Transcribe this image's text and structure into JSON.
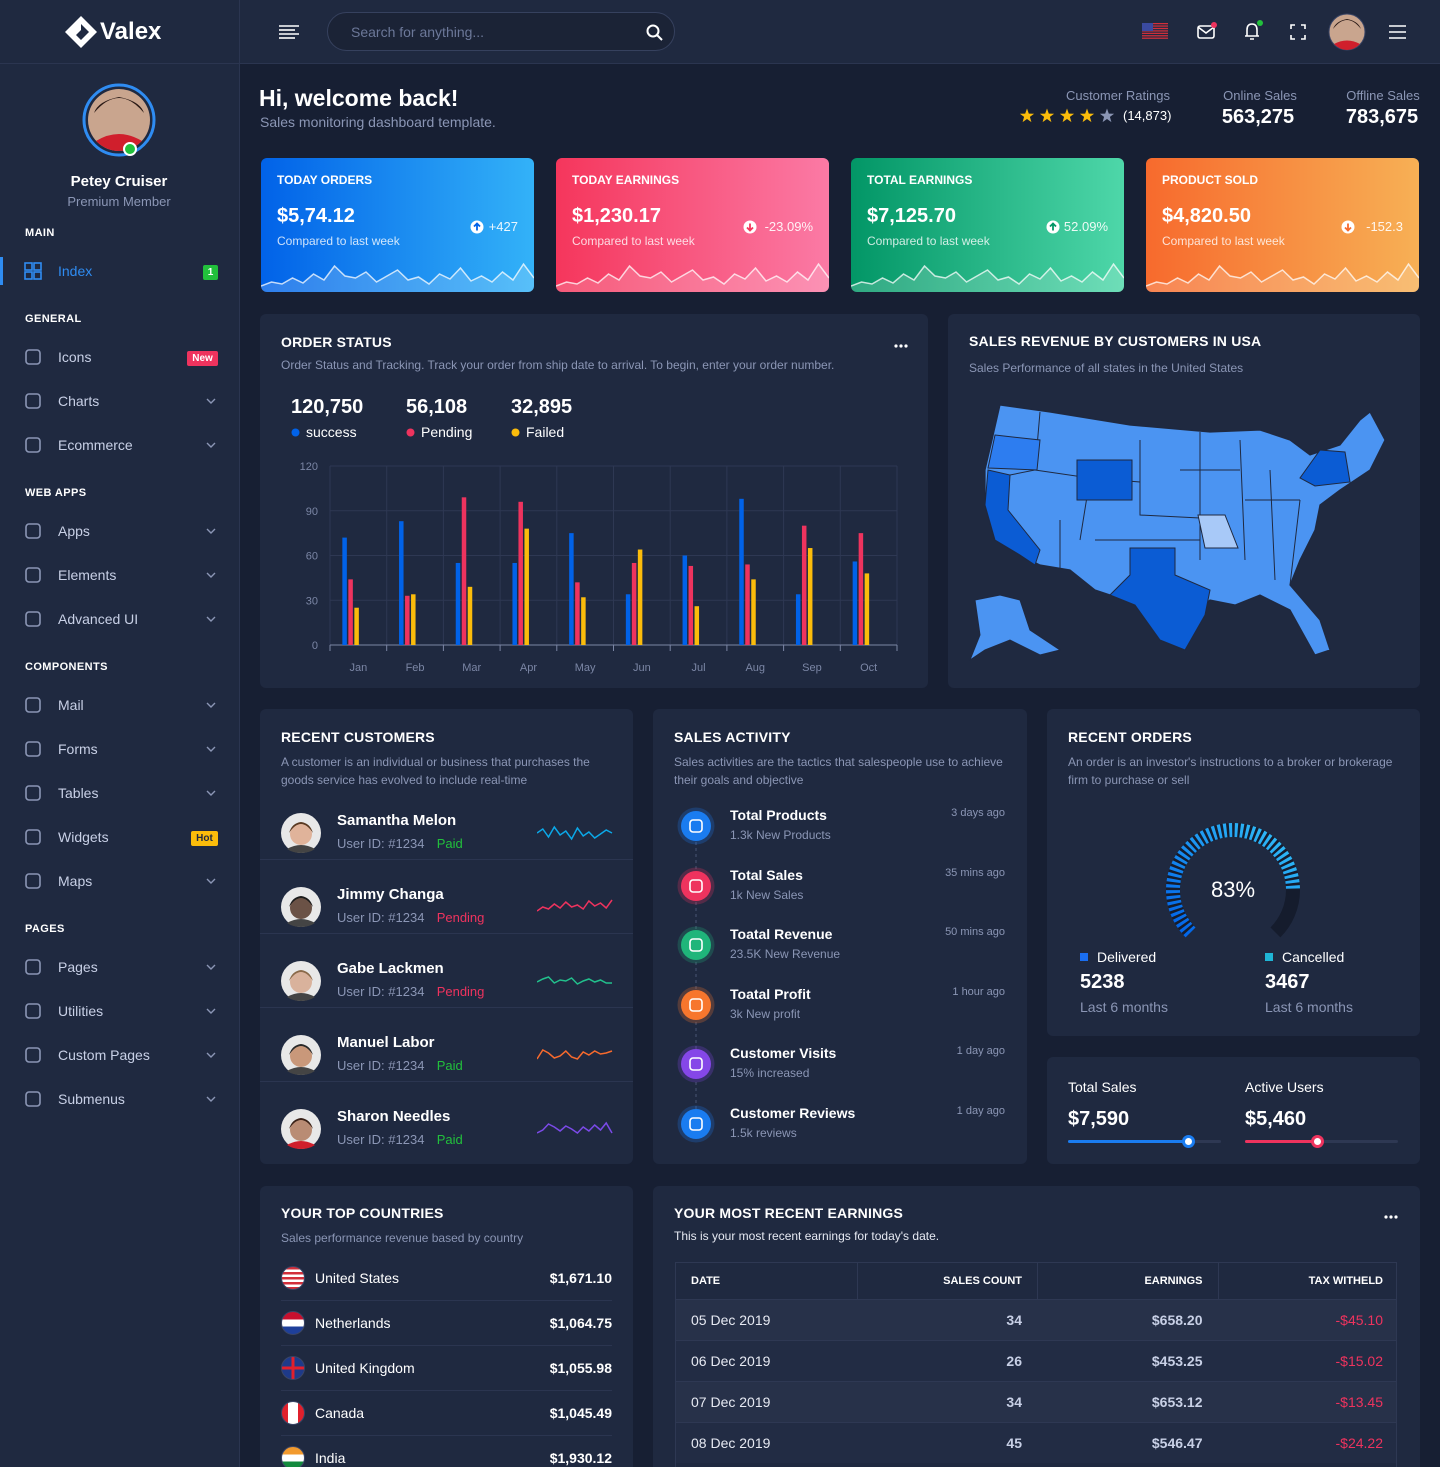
{
  "sidebar": {
    "brand": "Valex",
    "user_name": "Petey Cruiser",
    "user_role": "Premium Member",
    "sections": [
      {
        "title": "MAIN",
        "items": [
          {
            "label": "Index",
            "badge": "1"
          }
        ]
      },
      {
        "title": "GENERAL",
        "items": [
          {
            "label": "Icons",
            "badge": "New"
          },
          {
            "label": "Charts"
          },
          {
            "label": "Ecommerce"
          }
        ]
      },
      {
        "title": "WEB APPS",
        "items": [
          {
            "label": "Apps"
          },
          {
            "label": "Elements"
          },
          {
            "label": "Advanced UI"
          }
        ]
      },
      {
        "title": "COMPONENTS",
        "items": [
          {
            "label": "Mail"
          },
          {
            "label": "Forms"
          },
          {
            "label": "Tables"
          },
          {
            "label": "Widgets",
            "badge": "Hot"
          },
          {
            "label": "Maps"
          }
        ]
      },
      {
        "title": "PAGES",
        "items": [
          {
            "label": "Pages"
          },
          {
            "label": "Utilities"
          },
          {
            "label": "Custom Pages"
          },
          {
            "label": "Submenus"
          }
        ]
      }
    ]
  },
  "header": {
    "search_placeholder": "Search for anything..."
  },
  "welcome": {
    "title": "Hi, welcome back!",
    "subtitle": "Sales monitoring dashboard template.",
    "ratings_label": "Customer Ratings",
    "ratings_count": "(14,873)",
    "stats": [
      {
        "label": "Online Sales",
        "value": "563,275"
      },
      {
        "label": "Offline Sales",
        "value": "783,675"
      }
    ]
  },
  "stat_cards": [
    {
      "title": "TODAY ORDERS",
      "value": "$5,74.12",
      "note": "Compared to last week",
      "change": "+427"
    },
    {
      "title": "TODAY EARNINGS",
      "value": "$1,230.17",
      "note": "Compared to last week",
      "change": "-23.09%"
    },
    {
      "title": "TOTAL EARNINGS",
      "value": "$7,125.70",
      "note": "Compared to last week",
      "change": "52.09%"
    },
    {
      "title": "PRODUCT SOLD",
      "value": "$4,820.50",
      "note": "Compared to last week",
      "change": "-152.3"
    }
  ],
  "chart_data": {
    "type": "bar",
    "title": "ORDER STATUS",
    "subtitle": "Order Status and Tracking. Track your order from ship date to arrival. To begin, enter your order number.",
    "categories": [
      "Jan",
      "Feb",
      "Mar",
      "Apr",
      "May",
      "Jun",
      "Jul",
      "Aug",
      "Sep",
      "Oct"
    ],
    "series": [
      {
        "name": "success",
        "total": "120,750",
        "color": "#0162e8",
        "values": [
          72,
          83,
          55,
          55,
          75,
          34,
          60,
          98,
          34,
          56
        ]
      },
      {
        "name": "Pending",
        "total": "56,108",
        "color": "#ee335e",
        "values": [
          44,
          33,
          99,
          96,
          42,
          55,
          53,
          54,
          80,
          75
        ]
      },
      {
        "name": "Failed",
        "total": "32,895",
        "color": "#fbbc0b",
        "values": [
          25,
          34,
          39,
          78,
          32,
          64,
          26,
          44,
          65,
          48
        ]
      }
    ],
    "ylim": [
      0,
      120
    ],
    "yticks": [
      0,
      30,
      60,
      90,
      120
    ],
    "grid": true
  },
  "map": {
    "title": "SALES REVENUE BY CUSTOMERS IN USA",
    "subtitle": "Sales Performance of all states in the United States"
  },
  "recent_customers": {
    "title": "RECENT CUSTOMERS",
    "subtitle": "A customer is an individual or business that purchases the goods service has evolved to include real-time",
    "items": [
      {
        "name": "Samantha Melon",
        "user_id": "User ID: #1234",
        "status": "Paid"
      },
      {
        "name": "Jimmy Changa",
        "user_id": "User ID: #1234",
        "status": "Pending"
      },
      {
        "name": "Gabe Lackmen",
        "user_id": "User ID: #1234",
        "status": "Pending"
      },
      {
        "name": "Manuel Labor",
        "user_id": "User ID: #1234",
        "status": "Paid"
      },
      {
        "name": "Sharon Needles",
        "user_id": "User ID: #1234",
        "status": "Paid"
      }
    ]
  },
  "sales_activity": {
    "title": "SALES ACTIVITY",
    "subtitle": "Sales activities are the tactics that salespeople use to achieve their goals and objective",
    "items": [
      {
        "title": "Total Products",
        "detail": "1.3k New Products",
        "time": "3 days ago"
      },
      {
        "title": "Total Sales",
        "detail": "1k New Sales",
        "time": "35 mins ago"
      },
      {
        "title": "Toatal Revenue",
        "detail": "23.5K New Revenue",
        "time": "50 mins ago"
      },
      {
        "title": "Toatal Profit",
        "detail": "3k New profit",
        "time": "1 hour ago"
      },
      {
        "title": "Customer Visits",
        "detail": "15% increased",
        "time": "1 day ago"
      },
      {
        "title": "Customer Reviews",
        "detail": "1.5k reviews",
        "time": "1 day ago"
      }
    ]
  },
  "recent_orders": {
    "title": "RECENT ORDERS",
    "subtitle": "An order is an investor's instructions to a broker or brokerage firm to purchase or sell",
    "percent": "83%",
    "legend": [
      {
        "label": "Delivered",
        "value": "5238",
        "period": "Last 6 months"
      },
      {
        "label": "Cancelled",
        "value": "3467",
        "period": "Last 6 months"
      }
    ]
  },
  "sales_summary": [
    {
      "label": "Total Sales",
      "value": "$7,590"
    },
    {
      "label": "Active Users",
      "value": "$5,460"
    }
  ],
  "top_countries": {
    "title": "YOUR TOP COUNTRIES",
    "subtitle": "Sales performance revenue based by country",
    "items": [
      {
        "name": "United States",
        "value": "$1,671.10"
      },
      {
        "name": "Netherlands",
        "value": "$1,064.75"
      },
      {
        "name": "United Kingdom",
        "value": "$1,055.98"
      },
      {
        "name": "Canada",
        "value": "$1,045.49"
      },
      {
        "name": "India",
        "value": "$1,930.12"
      }
    ]
  },
  "recent_earnings": {
    "title": "YOUR MOST RECENT EARNINGS",
    "subtitle": "This is your most recent earnings for today's date.",
    "table": {
      "columns": [
        "DATE",
        "SALES COUNT",
        "EARNINGS",
        "TAX WITHELD"
      ],
      "rows": [
        [
          "05 Dec 2019",
          "34",
          "$658.20",
          "-$45.10"
        ],
        [
          "06 Dec 2019",
          "26",
          "$453.25",
          "-$15.02"
        ],
        [
          "07 Dec 2019",
          "34",
          "$653.12",
          "-$13.45"
        ],
        [
          "08 Dec 2019",
          "45",
          "$546.47",
          "-$24.22"
        ]
      ]
    }
  }
}
